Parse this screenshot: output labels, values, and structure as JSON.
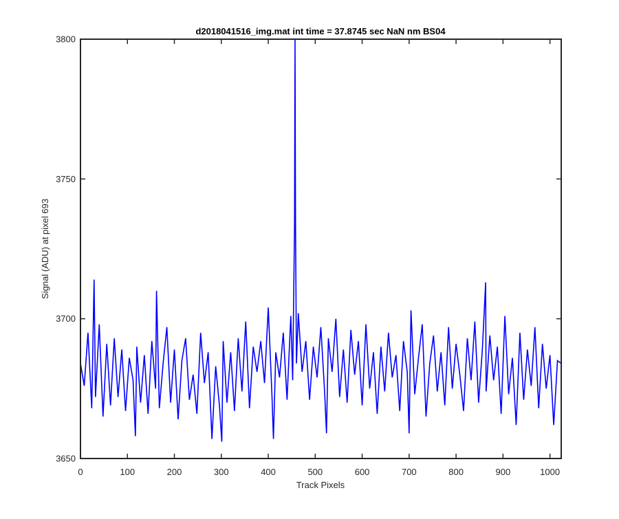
{
  "chart_data": {
    "type": "line",
    "title": "d2018041516_img.mat int time = 37.8745 sec  NaN nm BS04",
    "xlabel": "Track Pixels",
    "ylabel": "Signal (ADU) at pixel 693",
    "xlim": [
      0,
      1024
    ],
    "ylim": [
      3650,
      3800
    ],
    "xticks": [
      0,
      100,
      200,
      300,
      400,
      500,
      600,
      700,
      800,
      900,
      1000
    ],
    "yticks": [
      3650,
      3700,
      3750,
      3800
    ],
    "grid": false,
    "line_color": "#0000ff",
    "series": [
      {
        "x": [
          0,
          8,
          16,
          24,
          29,
          32,
          40,
          48,
          56,
          64,
          72,
          80,
          88,
          96,
          104,
          112,
          117,
          120,
          128,
          136,
          144,
          152,
          160,
          162,
          168,
          176,
          184,
          192,
          200,
          208,
          216,
          224,
          232,
          240,
          248,
          256,
          264,
          272,
          280,
          288,
          296,
          301,
          304,
          312,
          320,
          328,
          336,
          344,
          352,
          360,
          368,
          376,
          384,
          392,
          400,
          408,
          411,
          416,
          424,
          432,
          440,
          448,
          452,
          456,
          457,
          458,
          460,
          464,
          472,
          480,
          488,
          496,
          504,
          512,
          520,
          524,
          528,
          536,
          544,
          552,
          560,
          568,
          576,
          584,
          592,
          600,
          608,
          616,
          624,
          632,
          640,
          648,
          656,
          664,
          672,
          680,
          688,
          696,
          700,
          704,
          712,
          720,
          728,
          736,
          744,
          752,
          760,
          768,
          776,
          784,
          792,
          800,
          808,
          816,
          824,
          832,
          840,
          848,
          856,
          863,
          864,
          872,
          880,
          888,
          896,
          904,
          912,
          920,
          928,
          936,
          944,
          952,
          960,
          968,
          976,
          984,
          992,
          1000,
          1008,
          1016,
          1024
        ],
        "y": [
          3684,
          3676,
          3695,
          3668,
          3714,
          3672,
          3698,
          3665,
          3691,
          3669,
          3693,
          3672,
          3689,
          3667,
          3686,
          3678,
          3658,
          3690,
          3670,
          3687,
          3666,
          3692,
          3675,
          3710,
          3668,
          3684,
          3697,
          3670,
          3689,
          3664,
          3685,
          3693,
          3671,
          3680,
          3666,
          3695,
          3677,
          3688,
          3657,
          3683,
          3669,
          3656,
          3692,
          3670,
          3688,
          3667,
          3693,
          3674,
          3699,
          3668,
          3690,
          3681,
          3692,
          3677,
          3704,
          3672,
          3657,
          3688,
          3679,
          3695,
          3671,
          3701,
          3678,
          3734,
          3800,
          3736,
          3684,
          3702,
          3681,
          3692,
          3671,
          3690,
          3679,
          3697,
          3674,
          3659,
          3693,
          3681,
          3700,
          3672,
          3689,
          3670,
          3696,
          3680,
          3692,
          3669,
          3698,
          3675,
          3688,
          3666,
          3690,
          3674,
          3695,
          3679,
          3687,
          3667,
          3692,
          3681,
          3659,
          3703,
          3673,
          3686,
          3698,
          3665,
          3684,
          3694,
          3674,
          3688,
          3669,
          3697,
          3675,
          3691,
          3680,
          3667,
          3693,
          3678,
          3699,
          3670,
          3689,
          3713,
          3674,
          3694,
          3678,
          3690,
          3666,
          3701,
          3673,
          3686,
          3662,
          3695,
          3671,
          3689,
          3676,
          3697,
          3668,
          3691,
          3675,
          3687,
          3662,
          3685,
          3684
        ]
      }
    ]
  }
}
